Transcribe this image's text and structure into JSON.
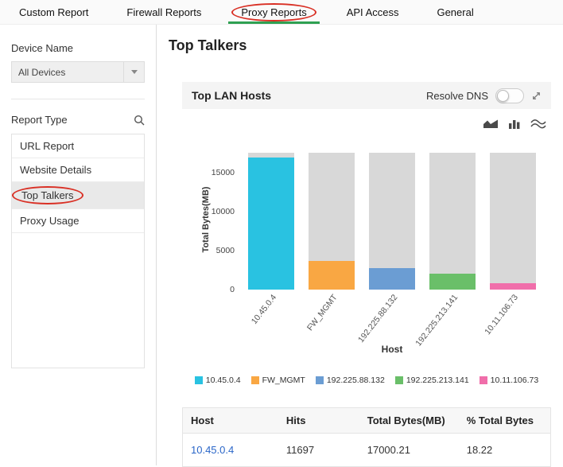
{
  "tabs": [
    {
      "label": "Custom Report",
      "active": false
    },
    {
      "label": "Firewall Reports",
      "active": false
    },
    {
      "label": "Proxy Reports",
      "active": true,
      "annotated": true
    },
    {
      "label": "API Access",
      "active": false
    },
    {
      "label": "General",
      "active": false
    }
  ],
  "sidebar": {
    "device_name_label": "Device Name",
    "device_select_value": "All Devices",
    "report_type_label": "Report Type",
    "items": [
      {
        "label": "URL Report",
        "selected": false
      },
      {
        "label": "Website Details",
        "selected": false
      },
      {
        "label": "Top Talkers",
        "selected": true,
        "annotated": true
      },
      {
        "label": "Proxy Usage",
        "selected": false
      }
    ]
  },
  "main": {
    "page_title": "Top Talkers",
    "card": {
      "title": "Top LAN Hosts",
      "resolve_dns_label": "Resolve DNS",
      "toggle_state": "off"
    }
  },
  "chart_data": {
    "type": "bar",
    "title": "Top LAN Hosts",
    "categories": [
      "10.45.0.4",
      "FW_MGMT",
      "192.225.88.132",
      "192.225.213.141",
      "10.11.106.73"
    ],
    "values": [
      17000,
      3700,
      2800,
      2000,
      800
    ],
    "background_total": 17600,
    "colors": [
      "#29c2e1",
      "#f9a743",
      "#6b9dd3",
      "#6abf69",
      "#f06eaa"
    ],
    "background_color": "#d8d8d8",
    "xlabel": "Host",
    "ylabel": "Total Bytes(MB)",
    "yticks": [
      0,
      5000,
      10000,
      15000
    ],
    "ylim": [
      0,
      18000
    ],
    "legend": [
      "10.45.0.4",
      "FW_MGMT",
      "192.225.88.132",
      "192.225.213.141",
      "10.11.106.73"
    ],
    "legend_position": "bottom",
    "grid": false
  },
  "table": {
    "headers": [
      "Host",
      "Hits",
      "Total Bytes(MB)",
      "% Total Bytes"
    ],
    "rows": [
      {
        "host": "10.45.0.4",
        "hits": "11697",
        "total_bytes": "17000.21",
        "pct": "18.22"
      }
    ]
  },
  "colors": {
    "active_tab_underline": "#2fa052",
    "annotation_red": "#d93025",
    "selected_item_bg": "#e9e9e9"
  }
}
